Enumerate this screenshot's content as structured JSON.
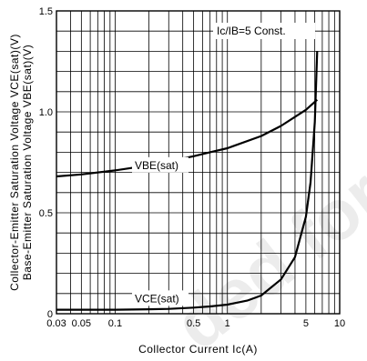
{
  "chart_data": {
    "type": "line",
    "xlabel": "Collector Current Ic(A)",
    "ylabel_lines": [
      "Collector-Emitter Saturation Voltage VCE(sat)(V)",
      "Base-Emitter Saturation Voltage VBE(sat)(V)"
    ],
    "x_scale": "log",
    "xlim": [
      0.03,
      10
    ],
    "ylim": [
      0,
      1.5
    ],
    "x_ticks": [
      {
        "value": 0.03,
        "label": "0.03"
      },
      {
        "value": 0.05,
        "label": "0.05"
      },
      {
        "value": 0.1,
        "label": "0.1"
      },
      {
        "value": 0.5,
        "label": "0.5"
      },
      {
        "value": 1,
        "label": "1"
      },
      {
        "value": 5,
        "label": "5"
      },
      {
        "value": 10,
        "label": "10"
      }
    ],
    "y_ticks": [
      {
        "value": 0,
        "label": "0"
      },
      {
        "value": 0.5,
        "label": "0.5"
      },
      {
        "value": 1.0,
        "label": "1.0"
      },
      {
        "value": 1.5,
        "label": "1.5"
      }
    ],
    "grid": true,
    "annotation": "Ic/IB=5 Const.",
    "series": [
      {
        "name": "VBE(sat)",
        "x": [
          0.03,
          0.05,
          0.1,
          0.2,
          0.3,
          0.5,
          0.7,
          1,
          2,
          3,
          5,
          6.3
        ],
        "y": [
          0.68,
          0.69,
          0.71,
          0.735,
          0.755,
          0.78,
          0.8,
          0.82,
          0.88,
          0.93,
          1.01,
          1.06
        ]
      },
      {
        "name": "VCE(sat)",
        "x": [
          0.03,
          0.05,
          0.1,
          0.2,
          0.3,
          0.5,
          0.7,
          1,
          1.5,
          2,
          3,
          4,
          5,
          5.5,
          6,
          6.3
        ],
        "y": [
          0.02,
          0.02,
          0.02,
          0.022,
          0.024,
          0.03,
          0.036,
          0.045,
          0.065,
          0.09,
          0.17,
          0.28,
          0.48,
          0.65,
          0.95,
          1.3
        ]
      }
    ]
  }
}
